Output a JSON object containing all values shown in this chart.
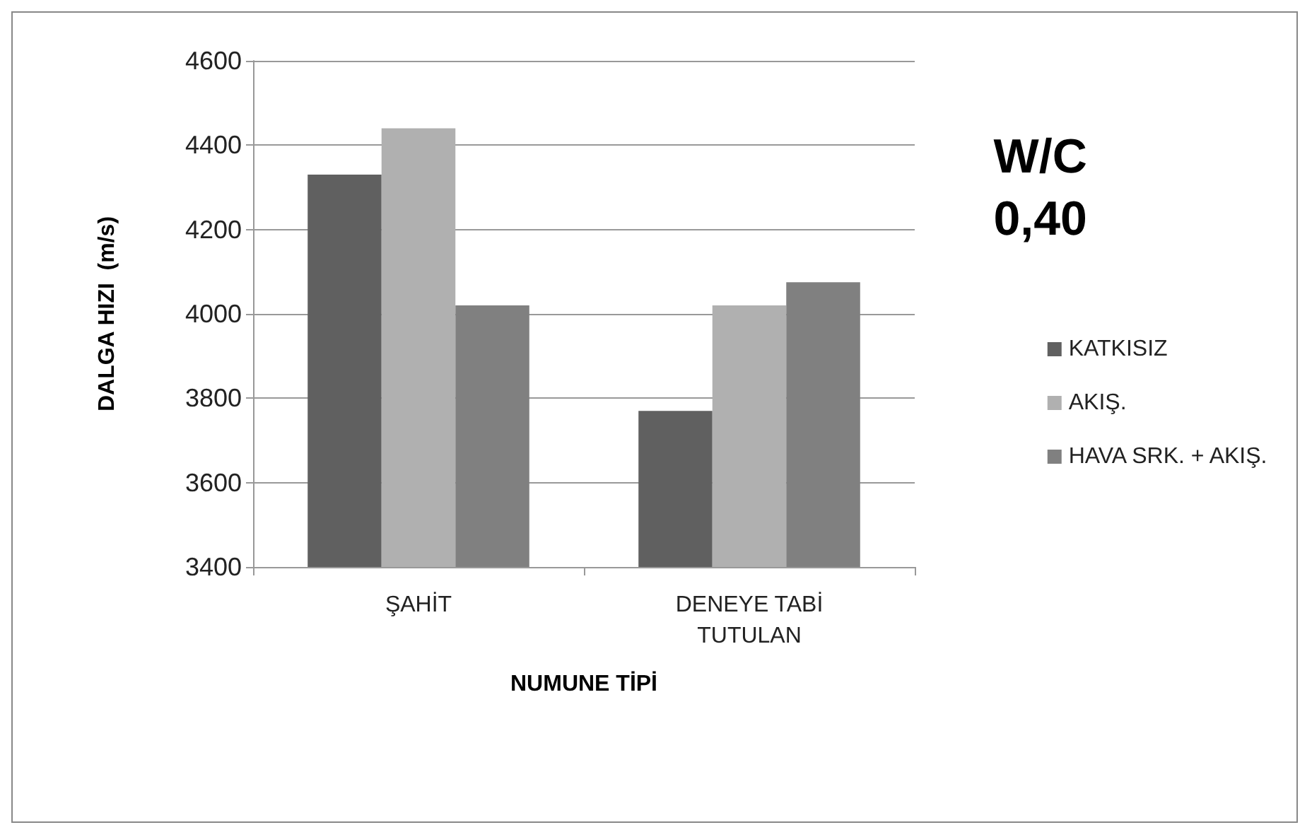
{
  "chart_data": {
    "type": "bar",
    "title": "W/C\n0,40",
    "xlabel": "NUMUNE TİPİ",
    "ylabel": "DALGA HIZI  (m/s)",
    "categories": [
      "ŞAHİT",
      "DENEYE TABİ\nTUTULAN"
    ],
    "series": [
      {
        "name": "KATKISIZ",
        "color": "#606060",
        "values": [
          4330,
          3770
        ]
      },
      {
        "name": "AKIŞ.",
        "color": "#b0b0b0",
        "values": [
          4440,
          4020
        ]
      },
      {
        "name": "HAVA SRK. + AKIŞ.",
        "color": "#808080",
        "values": [
          4020,
          4075
        ]
      }
    ],
    "ylim": [
      3400,
      4600
    ],
    "yticks": [
      3400,
      3600,
      3800,
      4000,
      4200,
      4400,
      4600
    ],
    "grid": "y",
    "legend": "right"
  }
}
